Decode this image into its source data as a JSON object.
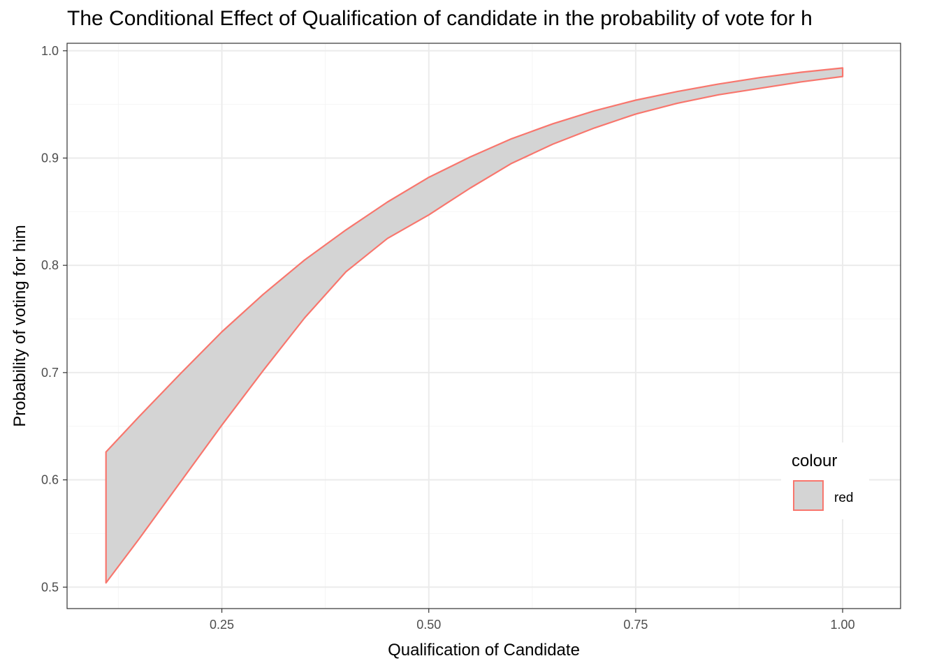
{
  "chart_data": {
    "type": "area",
    "title": "The Conditional Effect of Qualification of candidate in the probability of vote for h",
    "xlabel": "Qualification of Candidate",
    "ylabel": "Probability of voting for him",
    "xlim": [
      0.063,
      1.07
    ],
    "ylim": [
      0.48,
      1.007
    ],
    "x_ticks": [
      0.25,
      0.5,
      0.75,
      1.0
    ],
    "x_tick_labels": [
      "0.25",
      "0.50",
      "0.75",
      "1.00"
    ],
    "y_ticks": [
      0.5,
      0.6,
      0.7,
      0.8,
      0.9,
      1.0
    ],
    "y_tick_labels": [
      "0.5",
      "0.6",
      "0.7",
      "0.8",
      "0.9",
      "1.0"
    ],
    "grid": true,
    "legend": {
      "title": "colour",
      "position": "bottom-right",
      "entries": [
        {
          "label": "red",
          "fill": "#d4d4d4",
          "stroke": "#f8766d"
        }
      ]
    },
    "series": [
      {
        "name": "red",
        "x": [
          0.11,
          0.15,
          0.2,
          0.25,
          0.3,
          0.35,
          0.4,
          0.45,
          0.5,
          0.55,
          0.6,
          0.65,
          0.7,
          0.75,
          0.8,
          0.85,
          0.9,
          0.95,
          1.0
        ],
        "upper": [
          0.626,
          0.659,
          0.699,
          0.738,
          0.773,
          0.805,
          0.833,
          0.859,
          0.882,
          0.901,
          0.918,
          0.932,
          0.944,
          0.954,
          0.962,
          0.969,
          0.975,
          0.98,
          0.984
        ],
        "lower": [
          0.504,
          0.545,
          0.598,
          0.651,
          0.702,
          0.751,
          0.794,
          0.825,
          0.847,
          0.872,
          0.895,
          0.913,
          0.928,
          0.941,
          0.951,
          0.959,
          0.965,
          0.971,
          0.976
        ]
      }
    ],
    "colors": {
      "fill": "#d4d4d4",
      "stroke": "#f8766d",
      "grid_major": "#ebebeb",
      "grid_minor": "#f5f5f5",
      "panel_border": "#333333"
    }
  }
}
